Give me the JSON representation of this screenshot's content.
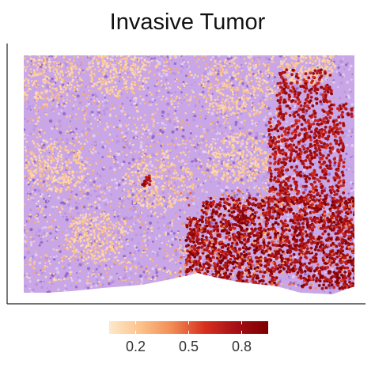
{
  "chart_data": {
    "type": "spatial-scatter",
    "title": "Invasive Tumor",
    "xlabel": "",
    "ylabel": "",
    "axes": "x and y axis lines only, no ticks or tick labels",
    "background": "purple tissue (cells with near-zero score)",
    "colorbar": {
      "position": "bottom",
      "ticks": [
        0.2,
        0.5,
        0.8
      ],
      "tick_labels": [
        "0.2",
        "0.5",
        "0.8"
      ],
      "range": [
        0.05,
        0.95
      ],
      "colors": [
        "#fde9c9",
        "#fcc28a",
        "#f08a52",
        "#d7301f",
        "#a50f15",
        "#7f0000"
      ]
    },
    "regions": [
      {
        "name": "high-score cluster lower-right",
        "score": 0.9
      },
      {
        "name": "high-score band right edge",
        "score": 0.85
      },
      {
        "name": "small high-score spot center",
        "score": 0.8
      },
      {
        "name": "scattered low-medium scores left",
        "score": 0.3
      }
    ],
    "colors": {
      "background_tissue": "#c9a6e6",
      "tissue_dark": "#8b5fc4",
      "low": "#fde2b8",
      "high": "#8b0000"
    }
  }
}
